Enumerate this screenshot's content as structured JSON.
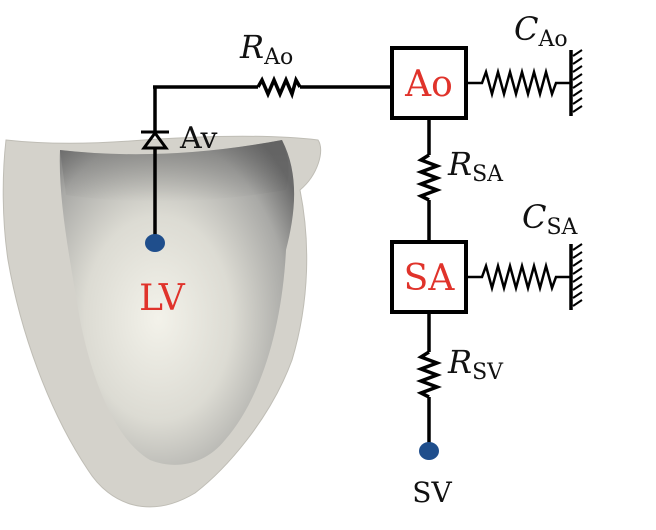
{
  "colors": {
    "wire": "#000000",
    "box_label": "#e0332b",
    "node": "#1f4e8c",
    "tissue_outer": "#d4d2cb",
    "cavity_light": "#f0efe6",
    "cavity_dark": "#6e6e6e"
  },
  "labels": {
    "lv": "LV",
    "av": "Av",
    "sv": "SV",
    "ao_box": "Ao",
    "sa_box": "SA",
    "r_ao": {
      "sym": "R",
      "sub": "Ao"
    },
    "c_ao": {
      "sym": "C",
      "sub": "Ao"
    },
    "r_sa": {
      "sym": "R",
      "sub": "SA"
    },
    "c_sa": {
      "sym": "C",
      "sub": "SA"
    },
    "r_sv": {
      "sym": "R",
      "sub": "SV"
    }
  }
}
